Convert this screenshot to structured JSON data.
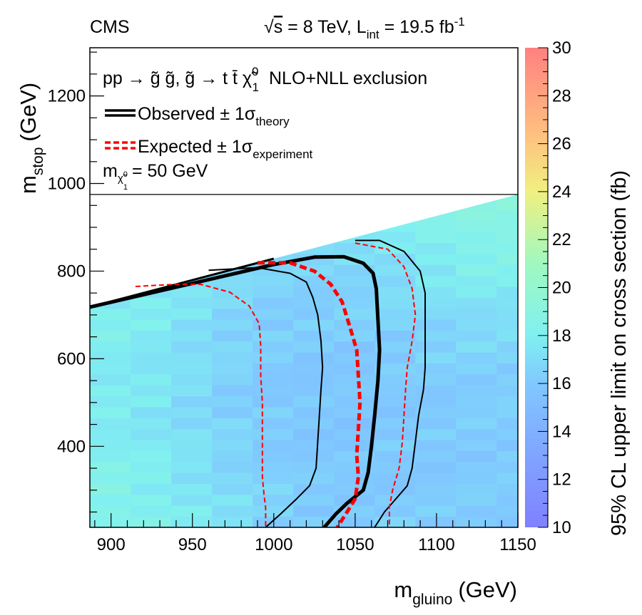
{
  "header": {
    "experiment": "CMS",
    "energy_sqrt": "s",
    "energy_rest": " = 8 TeV,  L",
    "lumi_sub": "int",
    "lumi_rest": " = 19.5 fb",
    "lumi_sup": "-1"
  },
  "legend": {
    "process_prefix": "pp → g̃ g̃, g̃ → t t̄ χ̃",
    "process_sup": "0",
    "process_sub": "1",
    "process_suffix": "NLO+NLL exclusion",
    "observed_label": "Observed ± 1σ",
    "observed_sub": "theory",
    "expected_label": "Expected ± 1σ",
    "expected_sub": "experiment",
    "mass_prefix": "m",
    "mass_sub": "χ̃",
    "mass_sub_sup": "0",
    "mass_sub_sub": "1",
    "mass_value": "= 50 GeV"
  },
  "chart_data": {
    "type": "heatmap",
    "title": "",
    "xlabel": "m",
    "xlabel_sub": "gluino",
    "xlabel_unit": "(GeV)",
    "ylabel": "m",
    "ylabel_sub": "stop",
    "ylabel_unit": "(GeV)",
    "zlabel": "95% CL upper limit on cross section (fb)",
    "xlim": [
      887,
      1150
    ],
    "ylim": [
      215,
      1310
    ],
    "zlim": [
      10,
      30
    ],
    "xticks": [
      900,
      950,
      1000,
      1050,
      1100,
      1150
    ],
    "yticks": [
      400,
      600,
      800,
      1000,
      1200
    ],
    "zticks": [
      10,
      12,
      14,
      16,
      18,
      20,
      22,
      24,
      26,
      28,
      30
    ],
    "legend_region_ymin": 975,
    "kinematic_edge": [
      [
        887,
        718
      ],
      [
        1150,
        975
      ]
    ],
    "z_baseline": 16.2,
    "z_corner_values": [
      {
        "x": 895,
        "y": 225,
        "z": 18.5
      },
      {
        "x": 895,
        "y": 700,
        "z": 18.0
      },
      {
        "x": 1145,
        "y": 960,
        "z": 19.0
      },
      {
        "x": 1000,
        "y": 500,
        "z": 15.6
      }
    ],
    "contours": [
      {
        "name": "Observed",
        "color": "#000000",
        "style": "solid",
        "width": "thick",
        "points": [
          [
            887,
            718
          ],
          [
            1000,
            815
          ],
          [
            1025,
            832
          ],
          [
            1043,
            833
          ],
          [
            1055,
            818
          ],
          [
            1061,
            795
          ],
          [
            1063,
            760
          ],
          [
            1064,
            690
          ],
          [
            1065,
            620
          ],
          [
            1064,
            550
          ],
          [
            1062,
            470
          ],
          [
            1060,
            400
          ],
          [
            1058,
            340
          ],
          [
            1055,
            300
          ],
          [
            1045,
            270
          ],
          [
            1038,
            245
          ],
          [
            1031,
            215
          ]
        ]
      },
      {
        "name": "Observed +1σ theory",
        "color": "#000000",
        "style": "solid",
        "width": "thin",
        "points": [
          [
            1050,
            870
          ],
          [
            1065,
            870
          ],
          [
            1080,
            845
          ],
          [
            1090,
            800
          ],
          [
            1093,
            750
          ],
          [
            1093,
            650
          ],
          [
            1093,
            580
          ],
          [
            1092,
            530
          ],
          [
            1089,
            470
          ],
          [
            1087,
            410
          ],
          [
            1085,
            350
          ],
          [
            1082,
            310
          ],
          [
            1075,
            280
          ],
          [
            1068,
            250
          ],
          [
            1062,
            215
          ]
        ]
      },
      {
        "name": "Observed -1σ theory",
        "color": "#000000",
        "style": "solid",
        "width": "thin",
        "points": [
          [
            960,
            802
          ],
          [
            990,
            808
          ],
          [
            1010,
            795
          ],
          [
            1020,
            775
          ],
          [
            1024,
            740
          ],
          [
            1027,
            700
          ],
          [
            1029,
            640
          ],
          [
            1030,
            580
          ],
          [
            1029,
            530
          ],
          [
            1028,
            470
          ],
          [
            1027,
            410
          ],
          [
            1026,
            350
          ],
          [
            1022,
            310
          ],
          [
            1014,
            280
          ],
          [
            1004,
            245
          ],
          [
            995,
            215
          ]
        ]
      },
      {
        "name": "Expected",
        "color": "#ff0000",
        "style": "dashed",
        "width": "thick",
        "points": [
          [
            990,
            819
          ],
          [
            1010,
            819
          ],
          [
            1025,
            800
          ],
          [
            1035,
            770
          ],
          [
            1042,
            730
          ],
          [
            1047,
            670
          ],
          [
            1051,
            620
          ],
          [
            1052,
            560
          ],
          [
            1053,
            500
          ],
          [
            1052,
            440
          ],
          [
            1051,
            380
          ],
          [
            1052,
            330
          ],
          [
            1050,
            280
          ],
          [
            1045,
            250
          ],
          [
            1039,
            215
          ]
        ]
      },
      {
        "name": "Expected +1σ experiment",
        "color": "#ff0000",
        "style": "dashed",
        "width": "thin",
        "points": [
          [
            1050,
            864
          ],
          [
            1070,
            850
          ],
          [
            1080,
            810
          ],
          [
            1085,
            760
          ],
          [
            1087,
            700
          ],
          [
            1085,
            640
          ],
          [
            1082,
            580
          ],
          [
            1081,
            530
          ],
          [
            1080,
            470
          ],
          [
            1079,
            410
          ],
          [
            1077,
            350
          ],
          [
            1073,
            300
          ],
          [
            1071,
            260
          ],
          [
            1071,
            215
          ]
        ]
      },
      {
        "name": "Expected -1σ experiment",
        "color": "#ff0000",
        "style": "dashed",
        "width": "thin",
        "points": [
          [
            915,
            765
          ],
          [
            940,
            770
          ],
          [
            955,
            770
          ],
          [
            973,
            752
          ],
          [
            985,
            720
          ],
          [
            991,
            680
          ],
          [
            992,
            630
          ],
          [
            992,
            560
          ],
          [
            993,
            500
          ],
          [
            993,
            440
          ],
          [
            993,
            380
          ],
          [
            993,
            330
          ],
          [
            994,
            290
          ],
          [
            995,
            260
          ],
          [
            995,
            215
          ]
        ]
      }
    ]
  }
}
